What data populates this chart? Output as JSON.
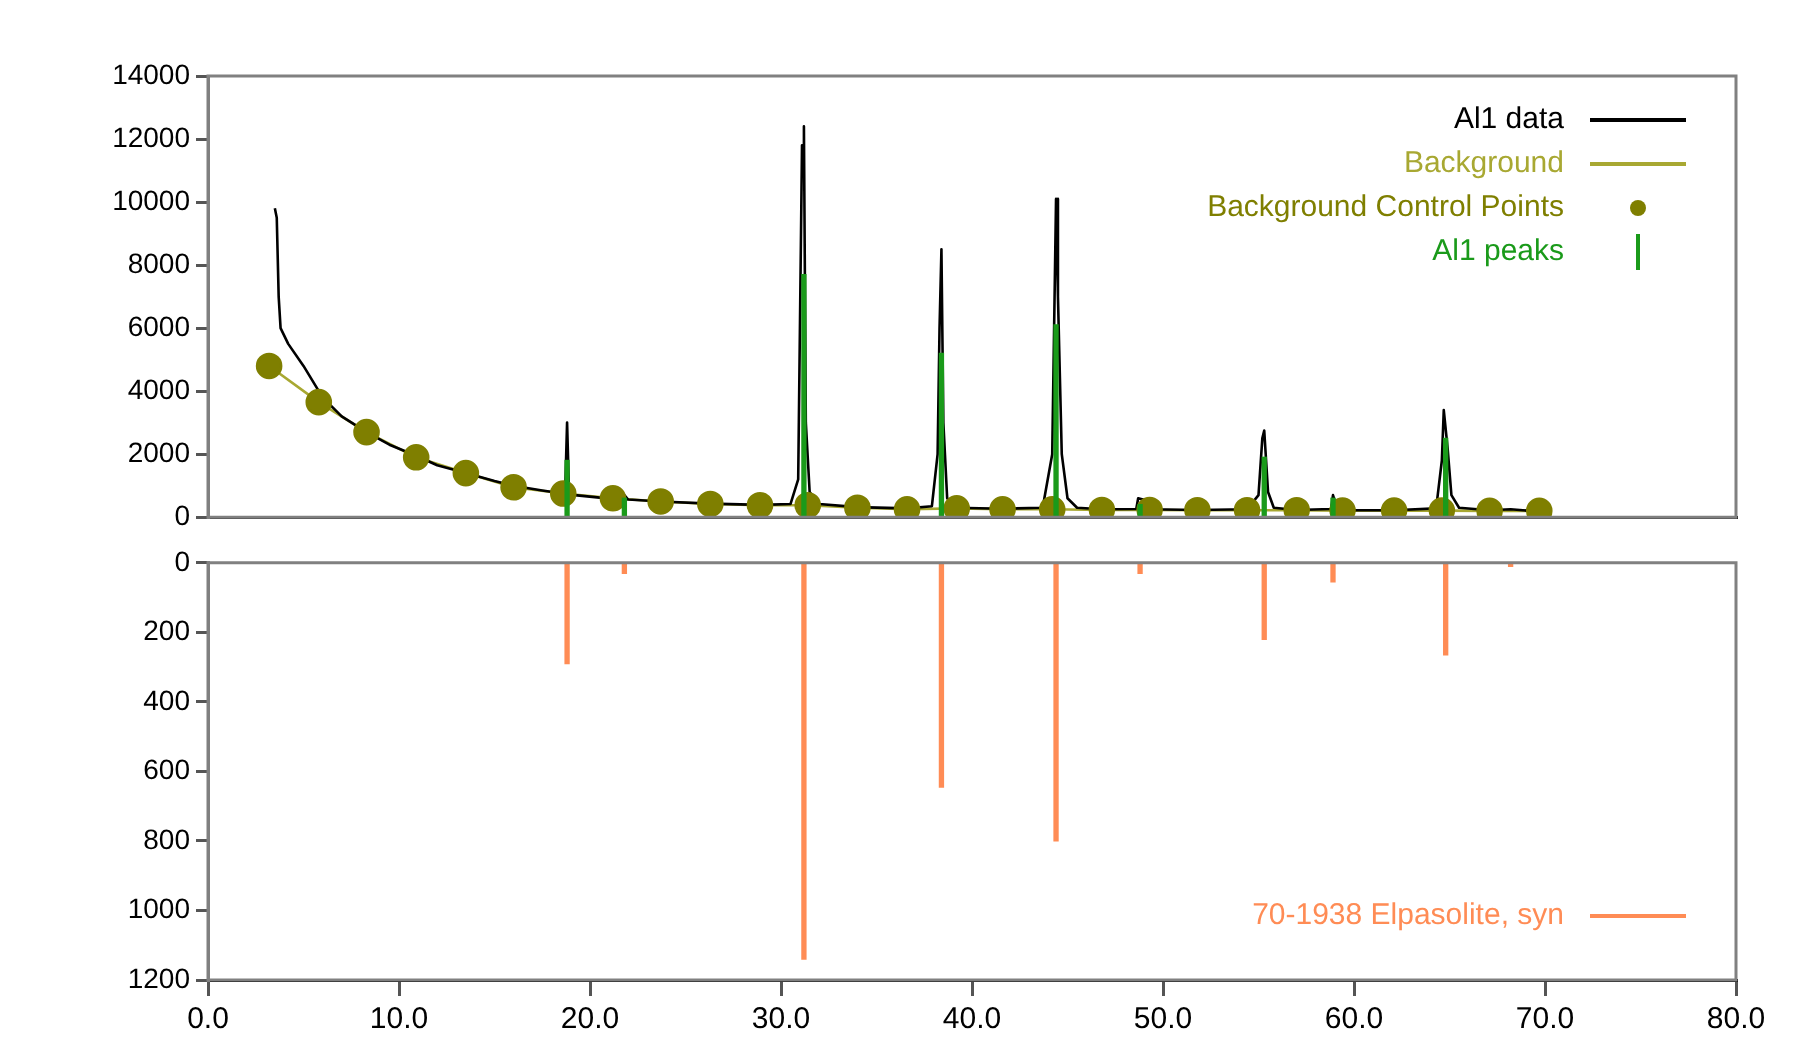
{
  "chart_data": [
    {
      "type": "line",
      "xlim": [
        0,
        80
      ],
      "ylim": [
        0,
        14000
      ],
      "yticks": [
        0,
        2000,
        4000,
        6000,
        8000,
        10000,
        12000,
        14000
      ],
      "tick_labels": "y",
      "grid": false,
      "legend": "top right",
      "series": [
        {
          "name": "Al1 data",
          "type": "line",
          "color": "#000000",
          "x": [
            3.5,
            3.6,
            3.7,
            3.8,
            4.2,
            5.0,
            6.0,
            7.0,
            8.3,
            9.5,
            10.9,
            12.0,
            13.5,
            15.0,
            16.0,
            17.5,
            18.5,
            18.7,
            18.8,
            18.9,
            19.2,
            20.5,
            21.6,
            21.8,
            22.0,
            23.7,
            26.3,
            28.9,
            30.5,
            30.9,
            31.1,
            31.2,
            31.3,
            31.5,
            32.0,
            34.0,
            36.6,
            37.9,
            38.2,
            38.3,
            38.4,
            38.5,
            38.7,
            39.2,
            41.6,
            43.7,
            44.2,
            44.4,
            44.5,
            44.7,
            45.0,
            45.5,
            46.8,
            48.6,
            48.7,
            49.0,
            49.3,
            51.8,
            54.4,
            55.0,
            55.2,
            55.3,
            55.5,
            55.8,
            57.0,
            58.8,
            58.9,
            59.1,
            59.4,
            62.1,
            64.3,
            64.6,
            64.7,
            64.9,
            65.1,
            65.5,
            67.1,
            68.2,
            69.7,
            70.0
          ],
          "values": [
            9800,
            9500,
            7000,
            6000,
            5500,
            4800,
            3800,
            3200,
            2700,
            2300,
            1950,
            1650,
            1400,
            1150,
            1000,
            850,
            760,
            800,
            3000,
            800,
            700,
            620,
            580,
            700,
            560,
            500,
            430,
            390,
            420,
            1200,
            11800,
            12400,
            3000,
            800,
            420,
            320,
            280,
            350,
            2000,
            6000,
            8500,
            3000,
            600,
            300,
            270,
            300,
            2000,
            10100,
            7000,
            2000,
            600,
            300,
            250,
            260,
            600,
            550,
            250,
            230,
            250,
            700,
            2500,
            2750,
            800,
            300,
            230,
            260,
            700,
            300,
            220,
            220,
            280,
            1800,
            3400,
            2200,
            700,
            300,
            220,
            250,
            180,
            180
          ]
        },
        {
          "name": "Background",
          "type": "line",
          "color": "#a8a832",
          "x": [
            3.2,
            5.8,
            8.3,
            10.9,
            13.5,
            16.0,
            18.6,
            21.2,
            23.7,
            26.3,
            28.9,
            31.4,
            34.0,
            36.6,
            39.2,
            41.6,
            44.2,
            46.8,
            49.3,
            51.8,
            54.4,
            57.0,
            59.4,
            62.1,
            64.6,
            67.1,
            69.7
          ],
          "values": [
            4800,
            3650,
            2700,
            1900,
            1400,
            950,
            750,
            600,
            500,
            420,
            380,
            380,
            300,
            250,
            280,
            250,
            250,
            230,
            230,
            220,
            220,
            220,
            210,
            210,
            210,
            200,
            200
          ]
        },
        {
          "name": "Background Control Points",
          "type": "scatter",
          "marker": "circle",
          "color": "#7f7f00",
          "x": [
            3.2,
            5.8,
            8.3,
            10.9,
            13.5,
            16.0,
            18.6,
            21.2,
            23.7,
            26.3,
            28.9,
            31.4,
            34.0,
            36.6,
            39.2,
            41.6,
            44.2,
            46.8,
            49.3,
            51.8,
            54.4,
            57.0,
            59.4,
            62.1,
            64.6,
            67.1,
            69.7
          ],
          "values": [
            4800,
            3650,
            2700,
            1900,
            1400,
            950,
            750,
            600,
            500,
            420,
            380,
            380,
            300,
            250,
            280,
            250,
            250,
            230,
            230,
            220,
            220,
            220,
            210,
            210,
            210,
            200,
            200
          ]
        },
        {
          "name": "Al1 peaks",
          "type": "bar",
          "color": "#1a9a1a",
          "x": [
            18.8,
            21.8,
            31.2,
            38.4,
            44.4,
            48.8,
            55.3,
            58.9,
            64.8
          ],
          "values": [
            1800,
            600,
            7700,
            5200,
            6100,
            400,
            1900,
            600,
            2500
          ]
        }
      ]
    },
    {
      "type": "bar",
      "xlim": [
        0,
        80
      ],
      "xticks": [
        {
          "value": 0,
          "label": "0.0"
        },
        {
          "value": 10,
          "label": "10.0"
        },
        {
          "value": 20,
          "label": "20.0"
        },
        {
          "value": 30,
          "label": "30.0"
        },
        {
          "value": 40,
          "label": "40.0"
        },
        {
          "value": 50,
          "label": "50.0"
        },
        {
          "value": 60,
          "label": "60.0"
        },
        {
          "value": 70,
          "label": "70.0"
        },
        {
          "value": 80,
          "label": "80.0"
        }
      ],
      "ylim": [
        1200,
        0
      ],
      "yticks": [
        0,
        200,
        400,
        600,
        800,
        1000,
        1200
      ],
      "grid": false,
      "legend": "bottom right",
      "series": [
        {
          "name": "70-1938 Elpasolite, syn",
          "type": "bar",
          "color": "#ff8c55",
          "x": [
            18.8,
            21.8,
            31.2,
            38.4,
            44.4,
            48.8,
            55.3,
            58.9,
            64.8,
            68.2
          ],
          "values": [
            290,
            30,
            1140,
            645,
            800,
            30,
            220,
            55,
            265,
            10
          ]
        }
      ]
    }
  ]
}
